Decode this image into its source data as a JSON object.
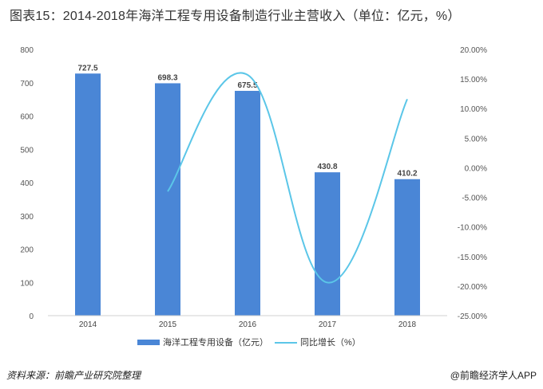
{
  "title": "图表15：2014-2018年海洋工程专用设备制造行业主营收入（单位：亿元，%）",
  "source": "资料来源：前瞻产业研究院整理",
  "brand": "@前瞻经济学人APP",
  "colors": {
    "bar": "#4a86d6",
    "line": "#5bc6e8",
    "grid": "#e8e8e8"
  },
  "chart_data": {
    "type": "bar",
    "categories": [
      "2014",
      "2015",
      "2016",
      "2017",
      "2018"
    ],
    "series": [
      {
        "name": "海洋工程专用设备（亿元）",
        "type": "bar",
        "axis": "left",
        "values": [
          727.5,
          698.3,
          675.5,
          430.8,
          410.2
        ],
        "labels": [
          "727.5",
          "698.3",
          "675.5",
          "430.8",
          "410.2"
        ]
      },
      {
        "name": "同比增长（%）",
        "type": "line",
        "axis": "right",
        "values": [
          null,
          -4.0,
          15.7,
          -19.4,
          11.6
        ]
      }
    ],
    "ylim_left": [
      0,
      800
    ],
    "yticks_left": [
      "0",
      "100",
      "200",
      "300",
      "400",
      "500",
      "600",
      "700",
      "800"
    ],
    "ylim_right": [
      -25,
      20
    ],
    "yticks_right": [
      "-25.00%",
      "-20.00%",
      "-15.00%",
      "-10.00%",
      "-5.00%",
      "0.00%",
      "5.00%",
      "10.00%",
      "15.00%",
      "20.00%"
    ],
    "grid": false,
    "legend": "bottom"
  }
}
